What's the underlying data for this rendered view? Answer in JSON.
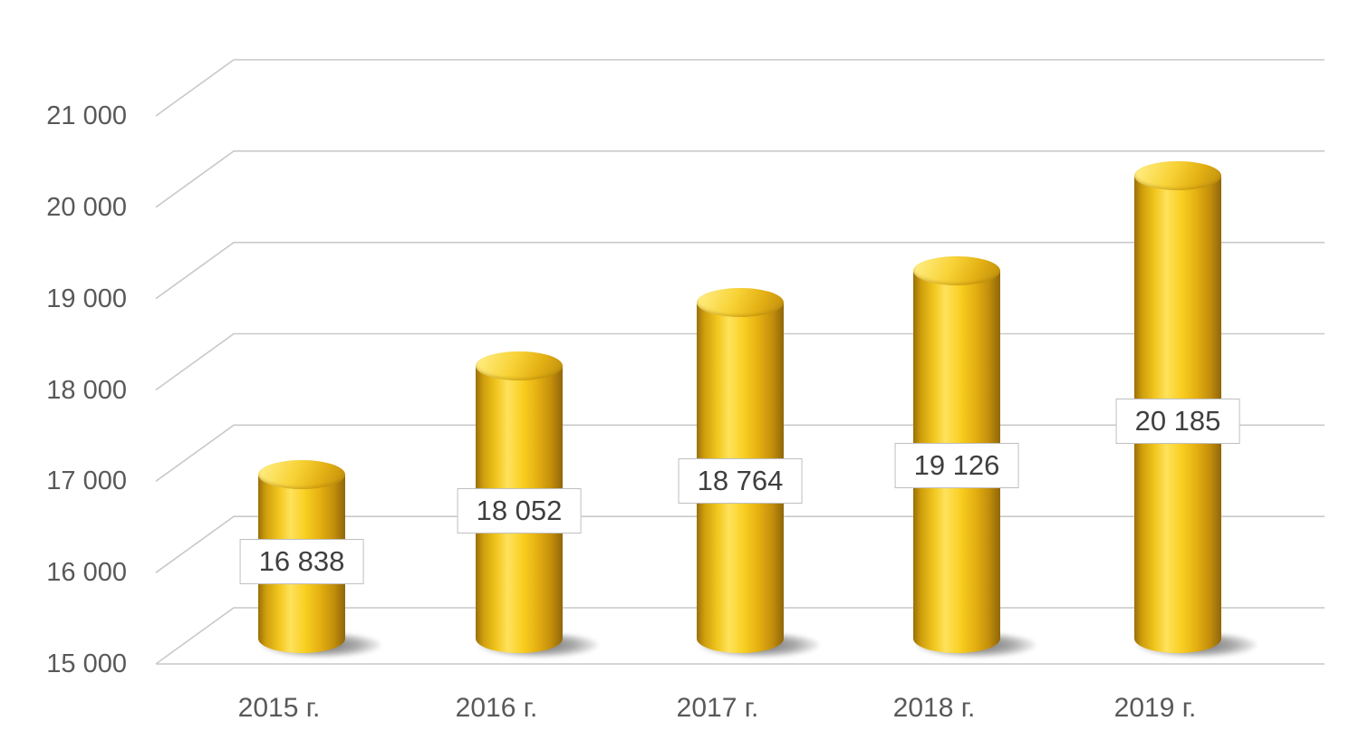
{
  "chart_data": {
    "type": "bar",
    "subtype": "cylinder-3d",
    "title": "",
    "xlabel": "",
    "ylabel": "",
    "categories": [
      "2015 г.",
      "2016 г.",
      "2017 г.",
      "2018 г.",
      "2019 г."
    ],
    "values": [
      16838,
      18052,
      18764,
      19126,
      20185
    ],
    "data_labels": [
      "16 838",
      "18 052",
      "18 764",
      "19 126",
      "20 185"
    ],
    "y_ticks": [
      15000,
      16000,
      17000,
      18000,
      19000,
      20000,
      21000
    ],
    "y_tick_labels": [
      "15 000",
      "16 000",
      "17 000",
      "18 000",
      "19 000",
      "20 000",
      "21 000"
    ],
    "ylim": [
      15000,
      21000
    ],
    "grid": true,
    "legend": false,
    "colors": {
      "bar_main": "#F0C419",
      "bar_highlight": "#FFE25C",
      "bar_dark": "#8F660A",
      "gridline": "#C9C9C9",
      "axis_text": "#595959",
      "data_label_text": "#3F3F3F",
      "data_label_border": "#BFBFBF",
      "data_label_bg": "#FFFFFF",
      "background": "#FFFFFF"
    }
  }
}
